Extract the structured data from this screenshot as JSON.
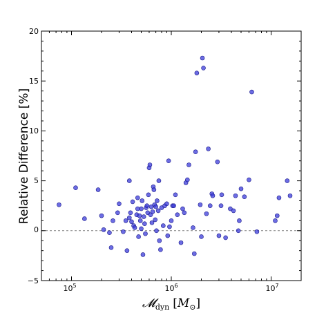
{
  "chart_data": {
    "type": "scatter",
    "xscale": "log",
    "xlim": [
      50000,
      20000000
    ],
    "ylim": [
      -5,
      20
    ],
    "grid": false,
    "xlabel": {
      "symbol": "𝓜",
      "subscript": "dyn",
      "bracket_open": "[",
      "unit_symbol": "M",
      "unit_subscript": "⊙",
      "bracket_close": "]"
    },
    "ylabel": "Relative Difference [%]",
    "y_ticks": [
      "−5",
      "0",
      "5",
      "10",
      "15",
      "20"
    ],
    "x_ticks": [
      {
        "mantissa": "10",
        "exponent": "5"
      },
      {
        "mantissa": "10",
        "exponent": "6"
      },
      {
        "mantissa": "10",
        "exponent": "7"
      }
    ],
    "reference_line": {
      "y": 0,
      "style": "dashed",
      "color": "#808080"
    },
    "marker_color": "#3b3bd9",
    "points": [
      [
        75000,
        2.6
      ],
      [
        110000,
        4.3
      ],
      [
        135000,
        1.2
      ],
      [
        185000,
        4.1
      ],
      [
        200000,
        1.5
      ],
      [
        210000,
        0.1
      ],
      [
        240000,
        -0.2
      ],
      [
        250000,
        -1.7
      ],
      [
        260000,
        1.0
      ],
      [
        290000,
        1.8
      ],
      [
        300000,
        2.7
      ],
      [
        330000,
        -0.1
      ],
      [
        350000,
        1.0
      ],
      [
        360000,
        -2.0
      ],
      [
        380000,
        5.0
      ],
      [
        380000,
        1.3
      ],
      [
        390000,
        1.8
      ],
      [
        400000,
        0.9
      ],
      [
        410000,
        2.9
      ],
      [
        420000,
        0.5
      ],
      [
        430000,
        0.3
      ],
      [
        450000,
        1.6
      ],
      [
        460000,
        2.2
      ],
      [
        460000,
        3.3
      ],
      [
        470000,
        -0.6
      ],
      [
        480000,
        1.5
      ],
      [
        490000,
        1.0
      ],
      [
        500000,
        0.2
      ],
      [
        500000,
        2.2
      ],
      [
        510000,
        3.0
      ],
      [
        520000,
        -2.4
      ],
      [
        530000,
        1.4
      ],
      [
        540000,
        0.7
      ],
      [
        550000,
        -0.3
      ],
      [
        560000,
        2.3
      ],
      [
        570000,
        2.5
      ],
      [
        580000,
        1.8
      ],
      [
        590000,
        3.6
      ],
      [
        600000,
        6.3
      ],
      [
        610000,
        6.6
      ],
      [
        620000,
        1.6
      ],
      [
        630000,
        2.4
      ],
      [
        640000,
        0.8
      ],
      [
        650000,
        1.9
      ],
      [
        660000,
        4.4
      ],
      [
        670000,
        4.1
      ],
      [
        680000,
        2.6
      ],
      [
        690000,
        1.1
      ],
      [
        700000,
        2.4
      ],
      [
        710000,
        0.0
      ],
      [
        720000,
        3.0
      ],
      [
        740000,
        2.0
      ],
      [
        750000,
        5.0
      ],
      [
        760000,
        -1.0
      ],
      [
        780000,
        -1.9
      ],
      [
        800000,
        2.3
      ],
      [
        830000,
        0.5
      ],
      [
        860000,
        2.5
      ],
      [
        900000,
        2.7
      ],
      [
        920000,
        -0.5
      ],
      [
        940000,
        7.0
      ],
      [
        960000,
        0.4
      ],
      [
        1000000,
        1.0
      ],
      [
        1030000,
        2.5
      ],
      [
        1060000,
        2.5
      ],
      [
        1100000,
        3.6
      ],
      [
        1150000,
        1.6
      ],
      [
        1250000,
        -1.2
      ],
      [
        1300000,
        2.2
      ],
      [
        1350000,
        1.8
      ],
      [
        1400000,
        4.8
      ],
      [
        1450000,
        5.1
      ],
      [
        1500000,
        6.6
      ],
      [
        1650000,
        0.3
      ],
      [
        1700000,
        -2.3
      ],
      [
        1750000,
        7.9
      ],
      [
        1800000,
        15.8
      ],
      [
        1950000,
        2.6
      ],
      [
        2000000,
        -0.6
      ],
      [
        2050000,
        17.3
      ],
      [
        2100000,
        16.3
      ],
      [
        2250000,
        1.7
      ],
      [
        2350000,
        8.2
      ],
      [
        2450000,
        2.5
      ],
      [
        2550000,
        3.7
      ],
      [
        2600000,
        3.5
      ],
      [
        2900000,
        6.9
      ],
      [
        3000000,
        -0.5
      ],
      [
        3150000,
        2.5
      ],
      [
        3200000,
        3.6
      ],
      [
        3500000,
        -0.7
      ],
      [
        3900000,
        2.2
      ],
      [
        4200000,
        2.0
      ],
      [
        4400000,
        3.5
      ],
      [
        4700000,
        0.0
      ],
      [
        4800000,
        1.0
      ],
      [
        5000000,
        4.2
      ],
      [
        5400000,
        3.4
      ],
      [
        6000000,
        5.1
      ],
      [
        6400000,
        13.9
      ],
      [
        7200000,
        -0.1
      ],
      [
        11000000,
        1.0
      ],
      [
        11500000,
        1.5
      ],
      [
        12000000,
        3.3
      ],
      [
        14500000,
        5.0
      ],
      [
        15500000,
        3.5
      ]
    ]
  }
}
